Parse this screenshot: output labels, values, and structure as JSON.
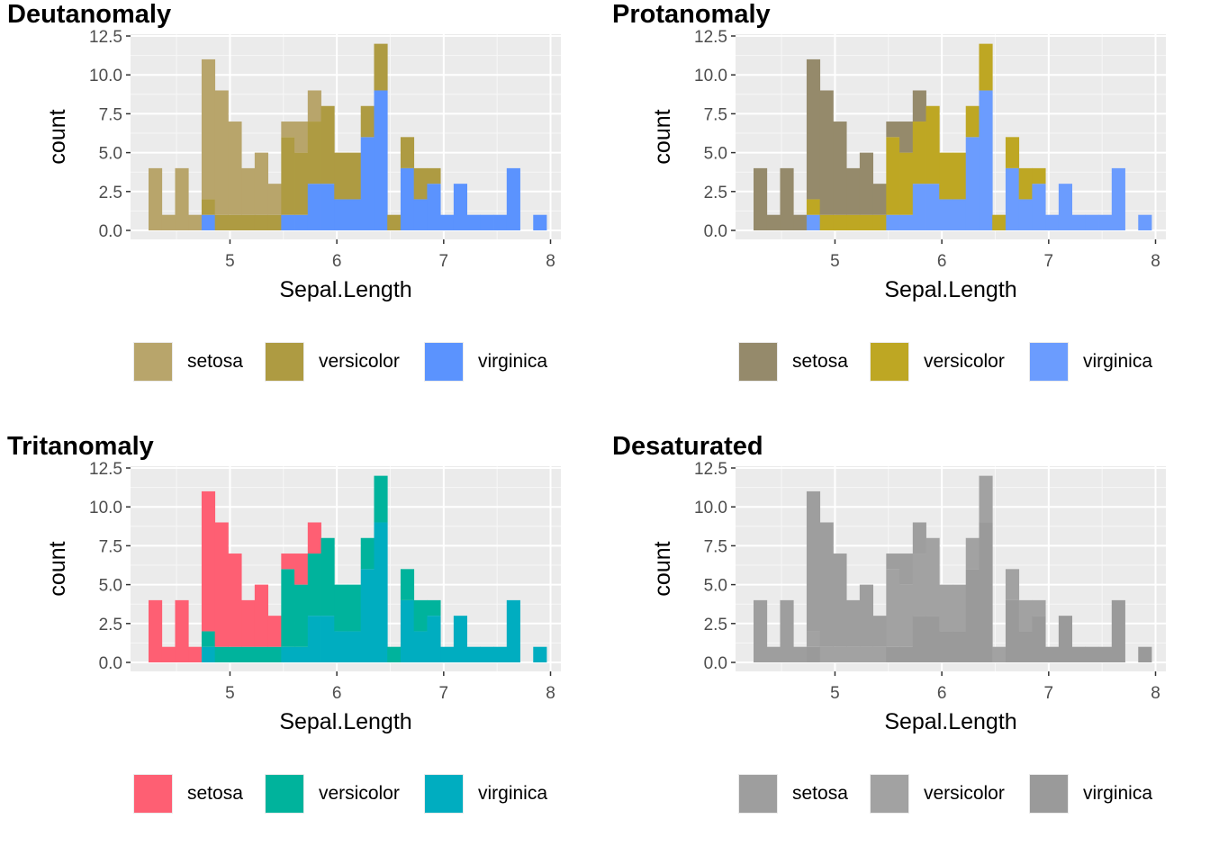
{
  "chart_data": [
    {
      "type": "bar",
      "title": "Deutanomaly",
      "xlabel": "Sepal.Length",
      "ylabel": "count",
      "xlim": [
        4.3,
        7.9
      ],
      "ylim": [
        0,
        12.5
      ],
      "x_ticks": [
        "5",
        "6",
        "7",
        "8"
      ],
      "y_ticks": [
        "0.0",
        "2.5",
        "5.0",
        "7.5",
        "10.0",
        "12.5"
      ],
      "bins": 30,
      "stacking": "stacked",
      "grid": true,
      "legend_position": "bottom",
      "bin_centers": [
        4.3,
        4.424,
        4.548,
        4.672,
        4.797,
        4.921,
        5.045,
        5.169,
        5.293,
        5.417,
        5.541,
        5.666,
        5.79,
        5.914,
        6.038,
        6.162,
        6.286,
        6.41,
        6.534,
        6.659,
        6.783,
        6.907,
        7.031,
        7.155,
        7.279,
        7.403,
        7.528,
        7.652,
        7.776,
        7.9
      ],
      "series": [
        {
          "name": "setosa",
          "color": "#b8a56b",
          "values": [
            4,
            1,
            4,
            1,
            9,
            8,
            6,
            3,
            4,
            2,
            1,
            2,
            2,
            0,
            0,
            0,
            0,
            0,
            0,
            0,
            0,
            0,
            0,
            0,
            0,
            0,
            0,
            0,
            0,
            0
          ]
        },
        {
          "name": "versicolor",
          "color": "#ae9b42",
          "values": [
            0,
            0,
            0,
            0,
            1,
            1,
            1,
            1,
            1,
            1,
            5,
            4,
            4,
            5,
            3,
            3,
            2,
            3,
            1,
            2,
            2,
            1,
            0,
            0,
            0,
            0,
            0,
            0,
            0,
            0
          ]
        },
        {
          "name": "virginica",
          "color": "#5b93fe",
          "values": [
            0,
            0,
            0,
            0,
            1,
            0,
            0,
            0,
            0,
            0,
            1,
            1,
            3,
            3,
            2,
            2,
            6,
            9,
            0,
            4,
            2,
            3,
            1,
            3,
            1,
            1,
            1,
            4,
            0,
            1
          ]
        }
      ]
    },
    {
      "type": "bar",
      "title": "Protanomaly",
      "xlabel": "Sepal.Length",
      "ylabel": "count",
      "xlim": [
        4.3,
        7.9
      ],
      "ylim": [
        0,
        12.5
      ],
      "x_ticks": [
        "5",
        "6",
        "7",
        "8"
      ],
      "y_ticks": [
        "0.0",
        "2.5",
        "5.0",
        "7.5",
        "10.0",
        "12.5"
      ],
      "bins": 30,
      "stacking": "stacked",
      "grid": true,
      "legend_position": "bottom",
      "bin_centers": [
        4.3,
        4.424,
        4.548,
        4.672,
        4.797,
        4.921,
        5.045,
        5.169,
        5.293,
        5.417,
        5.541,
        5.666,
        5.79,
        5.914,
        6.038,
        6.162,
        6.286,
        6.41,
        6.534,
        6.659,
        6.783,
        6.907,
        7.031,
        7.155,
        7.279,
        7.403,
        7.528,
        7.652,
        7.776,
        7.9
      ],
      "series": [
        {
          "name": "setosa",
          "color": "#958a6b",
          "values": [
            4,
            1,
            4,
            1,
            9,
            8,
            6,
            3,
            4,
            2,
            1,
            2,
            2,
            0,
            0,
            0,
            0,
            0,
            0,
            0,
            0,
            0,
            0,
            0,
            0,
            0,
            0,
            0,
            0,
            0
          ]
        },
        {
          "name": "versicolor",
          "color": "#bea723",
          "values": [
            0,
            0,
            0,
            0,
            1,
            1,
            1,
            1,
            1,
            1,
            5,
            4,
            4,
            5,
            3,
            3,
            2,
            3,
            1,
            2,
            2,
            1,
            0,
            0,
            0,
            0,
            0,
            0,
            0,
            0
          ]
        },
        {
          "name": "virginica",
          "color": "#6b9cfe",
          "values": [
            0,
            0,
            0,
            0,
            1,
            0,
            0,
            0,
            0,
            0,
            1,
            1,
            3,
            3,
            2,
            2,
            6,
            9,
            0,
            4,
            2,
            3,
            1,
            3,
            1,
            1,
            1,
            4,
            0,
            1
          ]
        }
      ]
    },
    {
      "type": "bar",
      "title": "Tritanomaly",
      "xlabel": "Sepal.Length",
      "ylabel": "count",
      "xlim": [
        4.3,
        7.9
      ],
      "ylim": [
        0,
        12.5
      ],
      "x_ticks": [
        "5",
        "6",
        "7",
        "8"
      ],
      "y_ticks": [
        "0.0",
        "2.5",
        "5.0",
        "7.5",
        "10.0",
        "12.5"
      ],
      "bins": 30,
      "stacking": "stacked",
      "grid": true,
      "legend_position": "bottom",
      "bin_centers": [
        4.3,
        4.424,
        4.548,
        4.672,
        4.797,
        4.921,
        5.045,
        5.169,
        5.293,
        5.417,
        5.541,
        5.666,
        5.79,
        5.914,
        6.038,
        6.162,
        6.286,
        6.41,
        6.534,
        6.659,
        6.783,
        6.907,
        7.031,
        7.155,
        7.279,
        7.403,
        7.528,
        7.652,
        7.776,
        7.9
      ],
      "series": [
        {
          "name": "setosa",
          "color": "#fe5f73",
          "values": [
            4,
            1,
            4,
            1,
            9,
            8,
            6,
            3,
            4,
            2,
            1,
            2,
            2,
            0,
            0,
            0,
            0,
            0,
            0,
            0,
            0,
            0,
            0,
            0,
            0,
            0,
            0,
            0,
            0,
            0
          ]
        },
        {
          "name": "versicolor",
          "color": "#00b39c",
          "values": [
            0,
            0,
            0,
            0,
            1,
            1,
            1,
            1,
            1,
            1,
            5,
            4,
            4,
            5,
            3,
            3,
            2,
            3,
            1,
            2,
            2,
            1,
            0,
            0,
            0,
            0,
            0,
            0,
            0,
            0
          ]
        },
        {
          "name": "virginica",
          "color": "#00adc0",
          "values": [
            0,
            0,
            0,
            0,
            1,
            0,
            0,
            0,
            0,
            0,
            1,
            1,
            3,
            3,
            2,
            2,
            6,
            9,
            0,
            4,
            2,
            3,
            1,
            3,
            1,
            1,
            1,
            4,
            0,
            1
          ]
        }
      ]
    },
    {
      "type": "bar",
      "title": "Desaturated",
      "xlabel": "Sepal.Length",
      "ylabel": "count",
      "xlim": [
        4.3,
        7.9
      ],
      "ylim": [
        0,
        12.5
      ],
      "x_ticks": [
        "5",
        "6",
        "7",
        "8"
      ],
      "y_ticks": [
        "0.0",
        "2.5",
        "5.0",
        "7.5",
        "10.0",
        "12.5"
      ],
      "bins": 30,
      "stacking": "stacked",
      "grid": true,
      "legend_position": "bottom",
      "bin_centers": [
        4.3,
        4.424,
        4.548,
        4.672,
        4.797,
        4.921,
        5.045,
        5.169,
        5.293,
        5.417,
        5.541,
        5.666,
        5.79,
        5.914,
        6.038,
        6.162,
        6.286,
        6.41,
        6.534,
        6.659,
        6.783,
        6.907,
        7.031,
        7.155,
        7.279,
        7.403,
        7.528,
        7.652,
        7.776,
        7.9
      ],
      "series": [
        {
          "name": "setosa",
          "color": "#9e9e9e",
          "values": [
            4,
            1,
            4,
            1,
            9,
            8,
            6,
            3,
            4,
            2,
            1,
            2,
            2,
            0,
            0,
            0,
            0,
            0,
            0,
            0,
            0,
            0,
            0,
            0,
            0,
            0,
            0,
            0,
            0,
            0
          ]
        },
        {
          "name": "versicolor",
          "color": "#a2a2a2",
          "values": [
            0,
            0,
            0,
            0,
            1,
            1,
            1,
            1,
            1,
            1,
            5,
            4,
            4,
            5,
            3,
            3,
            2,
            3,
            1,
            2,
            2,
            1,
            0,
            0,
            0,
            0,
            0,
            0,
            0,
            0
          ]
        },
        {
          "name": "virginica",
          "color": "#9a9a9a",
          "values": [
            0,
            0,
            0,
            0,
            1,
            0,
            0,
            0,
            0,
            0,
            1,
            1,
            3,
            3,
            2,
            2,
            6,
            9,
            0,
            4,
            2,
            3,
            1,
            3,
            1,
            1,
            1,
            4,
            0,
            1
          ]
        }
      ]
    }
  ]
}
